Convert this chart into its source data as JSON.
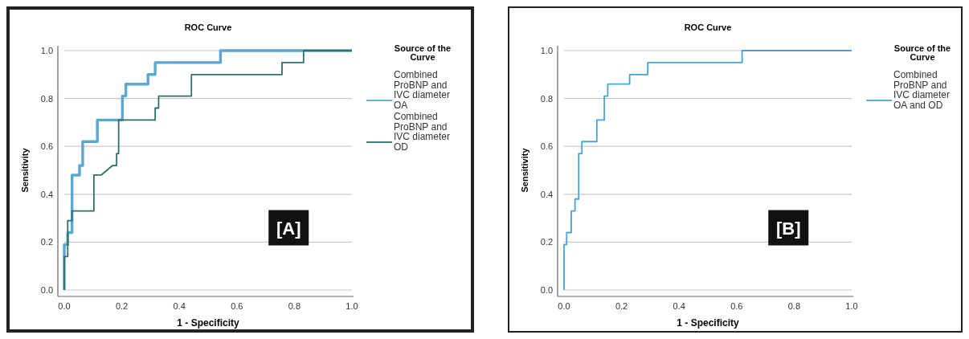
{
  "chart_data": [
    {
      "type": "line",
      "title": "ROC Curve",
      "xlabel": "1 - Specificity",
      "ylabel": "Sensitivity",
      "legend_title": "Source of the Curve",
      "legend": "right",
      "grid": "y",
      "xlim": [
        0,
        1
      ],
      "ylim": [
        0,
        1
      ],
      "xticks": [
        {
          "value": 0,
          "label": "0.0"
        },
        {
          "value": 0.2,
          "label": "0.2"
        },
        {
          "value": 0.4,
          "label": "0.4"
        },
        {
          "value": 0.6,
          "label": "0.6"
        },
        {
          "value": 0.8,
          "label": "0.8"
        },
        {
          "value": 1,
          "label": "1.0"
        }
      ],
      "yticks": [
        {
          "value": 0,
          "label": "0.0"
        },
        {
          "value": 0.2,
          "label": "0.2"
        },
        {
          "value": 0.4,
          "label": "0.4"
        },
        {
          "value": 0.6,
          "label": "0.6"
        },
        {
          "value": 0.8,
          "label": "0.8"
        },
        {
          "value": 1,
          "label": "1.0"
        }
      ],
      "annotations": [
        "[A]"
      ],
      "series": [
        {
          "name": "Combined ProBNP and IVC diameter OA",
          "color": "#5aa8d2",
          "x": [
            0,
            0,
            0.012,
            0.012,
            0.027,
            0.027,
            0.053,
            0.053,
            0.064,
            0.064,
            0.115,
            0.115,
            0.202,
            0.202,
            0.214,
            0.214,
            0.291,
            0.291,
            0.316,
            0.316,
            0.543,
            0.543,
            1
          ],
          "values": [
            0,
            0.19,
            0.19,
            0.24,
            0.24,
            0.48,
            0.48,
            0.52,
            0.52,
            0.62,
            0.62,
            0.71,
            0.71,
            0.81,
            0.81,
            0.86,
            0.86,
            0.9,
            0.9,
            0.95,
            0.95,
            1,
            1
          ]
        },
        {
          "name": "Combined ProBNP and IVC diameter OD",
          "color": "#2f6e6a",
          "x": [
            0,
            0,
            0.012,
            0.012,
            0.027,
            0.027,
            0.103,
            0.103,
            0.128,
            0.168,
            0.182,
            0.182,
            0.189,
            0.189,
            0.316,
            0.316,
            0.328,
            0.328,
            0.442,
            0.442,
            0.757,
            0.757,
            0.832,
            0.832,
            1
          ],
          "values": [
            0,
            0.14,
            0.14,
            0.29,
            0.29,
            0.33,
            0.33,
            0.48,
            0.48,
            0.52,
            0.52,
            0.57,
            0.57,
            0.71,
            0.71,
            0.76,
            0.76,
            0.81,
            0.81,
            0.9,
            0.9,
            0.95,
            0.95,
            1,
            1
          ]
        }
      ]
    },
    {
      "type": "line",
      "title": "ROC Curve",
      "xlabel": "1 - Specificity",
      "ylabel": "Sensitivity",
      "legend_title": "Source of the Curve",
      "legend": "right",
      "grid": "y",
      "xlim": [
        0,
        1
      ],
      "ylim": [
        0,
        1
      ],
      "xticks": [
        {
          "value": 0,
          "label": "0.0"
        },
        {
          "value": 0.2,
          "label": "0.2"
        },
        {
          "value": 0.4,
          "label": "0.4"
        },
        {
          "value": 0.6,
          "label": "0.6"
        },
        {
          "value": 0.8,
          "label": "0.8"
        },
        {
          "value": 1,
          "label": "1.0"
        }
      ],
      "yticks": [
        {
          "value": 0,
          "label": "0.0"
        },
        {
          "value": 0.2,
          "label": "0.2"
        },
        {
          "value": 0.4,
          "label": "0.4"
        },
        {
          "value": 0.6,
          "label": "0.6"
        },
        {
          "value": 0.8,
          "label": "0.8"
        },
        {
          "value": 1,
          "label": "1.0"
        }
      ],
      "annotations": [
        "[B]"
      ],
      "series": [
        {
          "name": "Combined ProBNP and IVC diameter OA and OD",
          "color": "#4aa3d8",
          "x": [
            0,
            0,
            0.009,
            0.009,
            0.025,
            0.025,
            0.038,
            0.038,
            0.051,
            0.051,
            0.062,
            0.062,
            0.114,
            0.114,
            0.14,
            0.14,
            0.152,
            0.152,
            0.228,
            0.228,
            0.291,
            0.291,
            0.619,
            0.619,
            1
          ],
          "values": [
            0,
            0.19,
            0.19,
            0.24,
            0.24,
            0.33,
            0.33,
            0.38,
            0.38,
            0.57,
            0.57,
            0.62,
            0.62,
            0.71,
            0.71,
            0.81,
            0.81,
            0.86,
            0.86,
            0.9,
            0.9,
            0.95,
            0.95,
            1,
            1
          ]
        }
      ]
    }
  ]
}
